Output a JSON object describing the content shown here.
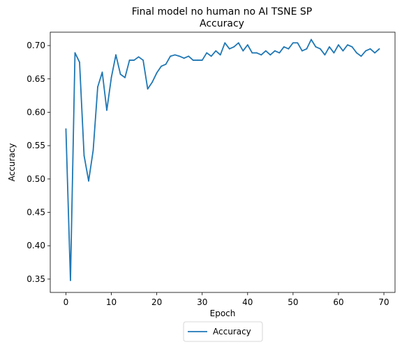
{
  "chart_data": {
    "type": "line",
    "title": "Final model no human no AI TSNE SP",
    "subtitle": "Accuracy",
    "xlabel": "Epoch",
    "ylabel": "Accuracy",
    "xlim": [
      -3.45,
      72.45
    ],
    "ylim": [
      0.33,
      0.72
    ],
    "xticks": [
      0,
      10,
      20,
      30,
      40,
      50,
      60,
      70
    ],
    "xtick_labels": [
      "0",
      "10",
      "20",
      "30",
      "40",
      "50",
      "60",
      "70"
    ],
    "yticks": [
      0.35,
      0.4,
      0.45,
      0.5,
      0.55,
      0.6,
      0.65,
      0.7
    ],
    "ytick_labels": [
      "0.35",
      "0.40",
      "0.45",
      "0.50",
      "0.55",
      "0.60",
      "0.65",
      "0.70"
    ],
    "grid": false,
    "legend": "bottom-center",
    "series": [
      {
        "name": "Accuracy",
        "color": "#1f77b4",
        "x": [
          0,
          1,
          2,
          3,
          4,
          5,
          6,
          7,
          8,
          9,
          10,
          11,
          12,
          13,
          14,
          15,
          16,
          17,
          18,
          19,
          20,
          21,
          22,
          23,
          24,
          25,
          26,
          27,
          28,
          29,
          30,
          31,
          32,
          33,
          34,
          35,
          36,
          37,
          38,
          39,
          40,
          41,
          42,
          43,
          44,
          45,
          46,
          47,
          48,
          49,
          50,
          51,
          52,
          53,
          54,
          55,
          56,
          57,
          58,
          59,
          60,
          61,
          62,
          63,
          64,
          65,
          66,
          67,
          68,
          69
        ],
        "values": [
          0.575,
          0.348,
          0.689,
          0.675,
          0.535,
          0.497,
          0.543,
          0.638,
          0.66,
          0.603,
          0.652,
          0.686,
          0.657,
          0.652,
          0.678,
          0.678,
          0.683,
          0.678,
          0.635,
          0.645,
          0.659,
          0.669,
          0.672,
          0.684,
          0.686,
          0.684,
          0.681,
          0.684,
          0.678,
          0.678,
          0.678,
          0.689,
          0.684,
          0.692,
          0.686,
          0.704,
          0.695,
          0.698,
          0.704,
          0.692,
          0.701,
          0.689,
          0.689,
          0.686,
          0.692,
          0.686,
          0.692,
          0.689,
          0.698,
          0.695,
          0.704,
          0.704,
          0.692,
          0.695,
          0.709,
          0.698,
          0.695,
          0.686,
          0.698,
          0.689,
          0.701,
          0.692,
          0.701,
          0.698,
          0.689,
          0.684,
          0.692,
          0.695,
          0.689,
          0.695
        ]
      }
    ]
  }
}
